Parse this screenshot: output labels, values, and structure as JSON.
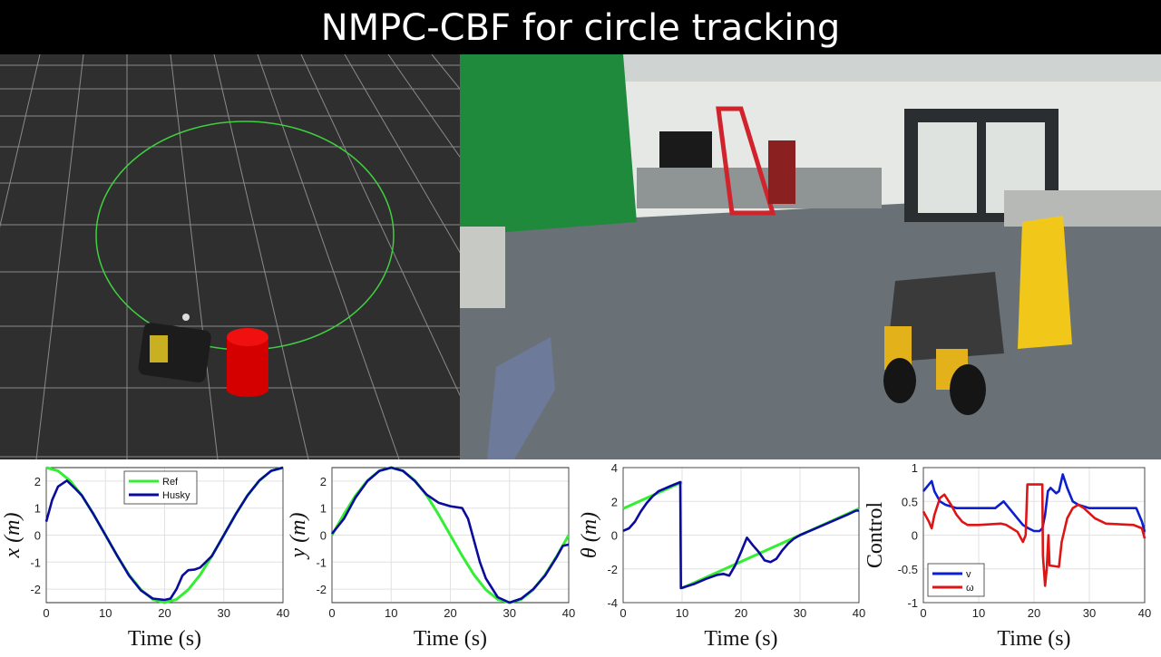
{
  "title": "NMPC-CBF for circle tracking",
  "colors": {
    "ref": "#33ee33",
    "husky": "#0a0a9c",
    "v": "#0b1fd0",
    "omega": "#dd1515",
    "obstacle": "#d40000",
    "circle": "#3fcf3f"
  },
  "chart_data": [
    {
      "type": "line",
      "xlabel": "Time (s)",
      "ylabel": "x (m)",
      "xlim": [
        0,
        40
      ],
      "ylim": [
        -2.5,
        2.5
      ],
      "xticks": [
        0,
        10,
        20,
        30,
        40
      ],
      "yticks": [
        -2,
        -1,
        0,
        1,
        2
      ],
      "grid": true,
      "legend": "top-center",
      "series": [
        {
          "name": "Ref",
          "color": "#33ee33",
          "x": [
            0,
            2,
            4,
            6,
            8,
            10,
            12,
            14,
            16,
            18,
            20,
            22,
            24,
            26,
            28,
            30,
            32,
            34,
            36,
            38,
            40
          ],
          "y": [
            2.5,
            2.38,
            2.02,
            1.47,
            0.77,
            0,
            -0.77,
            -1.47,
            -2.02,
            -2.38,
            -2.5,
            -2.38,
            -2.02,
            -1.47,
            -0.77,
            0,
            0.77,
            1.47,
            2.02,
            2.38,
            2.5
          ]
        },
        {
          "name": "Husky",
          "color": "#0a0a9c",
          "x": [
            0,
            1,
            2,
            3.5,
            5,
            6,
            8,
            10,
            12,
            14,
            16,
            18,
            20,
            21,
            22,
            23,
            24,
            25,
            26,
            28,
            30,
            32,
            34,
            36,
            38,
            40
          ],
          "y": [
            0.5,
            1.3,
            1.8,
            2.02,
            1.7,
            1.47,
            0.77,
            0,
            -0.77,
            -1.5,
            -2.05,
            -2.35,
            -2.4,
            -2.35,
            -2.0,
            -1.5,
            -1.3,
            -1.28,
            -1.2,
            -0.77,
            0,
            0.77,
            1.47,
            2.02,
            2.38,
            2.5
          ]
        }
      ]
    },
    {
      "type": "line",
      "xlabel": "Time (s)",
      "ylabel": "y (m)",
      "xlim": [
        0,
        40
      ],
      "ylim": [
        -2.5,
        2.5
      ],
      "xticks": [
        0,
        10,
        20,
        30,
        40
      ],
      "yticks": [
        -2,
        -1,
        0,
        1,
        2
      ],
      "grid": true,
      "series": [
        {
          "color": "#33ee33",
          "x": [
            0,
            2,
            4,
            6,
            8,
            10,
            12,
            14,
            16,
            18,
            20,
            22,
            24,
            26,
            28,
            30,
            32,
            34,
            36,
            38,
            40
          ],
          "y": [
            0,
            0.77,
            1.47,
            2.02,
            2.38,
            2.5,
            2.38,
            2.02,
            1.47,
            0.77,
            0,
            -0.77,
            -1.47,
            -2.02,
            -2.38,
            -2.5,
            -2.38,
            -2.02,
            -1.47,
            -0.77,
            0
          ]
        },
        {
          "color": "#0a0a9c",
          "x": [
            0,
            2,
            4,
            6,
            8,
            10,
            12,
            14,
            16,
            18,
            20,
            22,
            23,
            24,
            25,
            26,
            28,
            30,
            32,
            34,
            36,
            38,
            39,
            40
          ],
          "y": [
            0.05,
            0.6,
            1.4,
            2.0,
            2.38,
            2.5,
            2.38,
            2.0,
            1.5,
            1.2,
            1.07,
            1.0,
            0.6,
            -0.2,
            -1.0,
            -1.6,
            -2.3,
            -2.5,
            -2.35,
            -2.0,
            -1.5,
            -0.8,
            -0.4,
            -0.35
          ]
        }
      ]
    },
    {
      "type": "line",
      "xlabel": "Time (s)",
      "ylabel": "θ (m)",
      "xlim": [
        0,
        40
      ],
      "ylim": [
        -4,
        4
      ],
      "xticks": [
        0,
        10,
        20,
        30,
        40
      ],
      "yticks": [
        -4,
        -2,
        0,
        2,
        4
      ],
      "grid": true,
      "series": [
        {
          "color": "#33ee33",
          "x": [
            0,
            10,
            10,
            10,
            40
          ],
          "y": [
            1.57,
            3.14,
            null,
            -3.14,
            1.57
          ]
        },
        {
          "color": "#0a0a9c",
          "x": [
            0,
            1,
            2,
            3,
            4,
            5,
            6,
            8,
            9.7,
            9.8,
            12,
            14,
            16,
            17,
            18,
            19,
            20,
            21,
            22,
            23,
            24,
            25,
            26,
            27,
            28,
            29,
            30,
            32,
            34,
            36,
            38,
            39.5,
            40
          ],
          "y": [
            0.25,
            0.4,
            0.8,
            1.4,
            1.9,
            2.3,
            2.6,
            2.9,
            3.14,
            -3.14,
            -2.9,
            -2.6,
            -2.35,
            -2.3,
            -2.4,
            -1.8,
            -1.0,
            -0.15,
            -0.6,
            -1.0,
            -1.5,
            -1.6,
            -1.4,
            -0.9,
            -0.5,
            -0.2,
            0,
            0.3,
            0.6,
            0.9,
            1.2,
            1.45,
            1.45
          ]
        }
      ]
    },
    {
      "type": "line",
      "xlabel": "Time (s)",
      "ylabel": "Control",
      "xlim": [
        0,
        40
      ],
      "ylim": [
        -1,
        1
      ],
      "xticks": [
        0,
        10,
        20,
        30,
        40
      ],
      "yticks": [
        -1,
        -0.5,
        0,
        0.5,
        1
      ],
      "grid": true,
      "legend": "bottom-left",
      "series": [
        {
          "name": "v",
          "color": "#0b1fd0",
          "x": [
            0,
            1,
            1.5,
            2,
            3,
            4,
            6,
            10,
            13,
            14.5,
            15.5,
            17,
            18,
            19,
            20,
            21,
            21.5,
            22,
            22.5,
            23,
            24,
            24.5,
            25.2,
            26,
            27,
            28,
            30,
            35,
            38.5,
            39.5,
            40
          ],
          "y": [
            0.65,
            0.75,
            0.8,
            0.65,
            0.5,
            0.45,
            0.4,
            0.4,
            0.4,
            0.5,
            0.4,
            0.25,
            0.15,
            0.1,
            0.06,
            0.06,
            0.1,
            0.3,
            0.65,
            0.7,
            0.62,
            0.65,
            0.9,
            0.7,
            0.5,
            0.45,
            0.4,
            0.4,
            0.4,
            0.2,
            0.05
          ]
        },
        {
          "name": "ω",
          "color": "#dd1515",
          "x": [
            0,
            1,
            1.5,
            2,
            3,
            3.8,
            5,
            6,
            7,
            8,
            10,
            14,
            15,
            17,
            18,
            18.5,
            18.8,
            21.5,
            21.6,
            22,
            22.3,
            22.6,
            22.8,
            24.5,
            25,
            26,
            27,
            28,
            29,
            31,
            33,
            38,
            39.5,
            40
          ],
          "y": [
            0.35,
            0.2,
            0.1,
            0.3,
            0.55,
            0.6,
            0.45,
            0.3,
            0.2,
            0.15,
            0.15,
            0.17,
            0.15,
            0.05,
            -0.1,
            0,
            0.75,
            0.75,
            -0.3,
            -0.75,
            -0.5,
            0,
            -0.45,
            -0.47,
            -0.1,
            0.25,
            0.4,
            0.45,
            0.4,
            0.25,
            0.17,
            0.15,
            0.1,
            -0.05
          ]
        }
      ]
    }
  ]
}
